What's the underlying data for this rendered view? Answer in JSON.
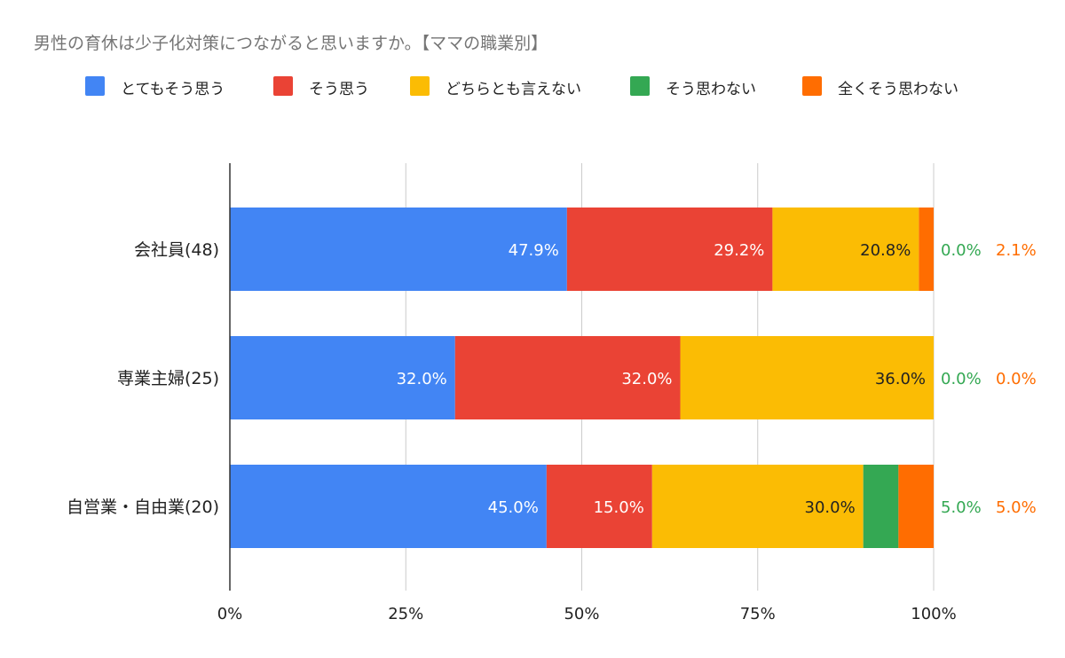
{
  "chart_data": {
    "type": "bar",
    "orientation": "horizontal",
    "stacked": "percent",
    "title": "男性の育休は少子化対策につながると思いますか。【ママの職業別】",
    "legend_position": "top",
    "categories": [
      "会社員(48)",
      "専業主婦(25)",
      "自営業・自由業(20)"
    ],
    "series": [
      {
        "name": "とてもそう思う",
        "color": "#4285F4",
        "values": [
          47.9,
          32.0,
          45.0
        ],
        "labels": [
          "47.9%",
          "32.0%",
          "45.0%"
        ]
      },
      {
        "name": "そう思う",
        "color": "#EA4335",
        "values": [
          29.2,
          32.0,
          15.0
        ],
        "labels": [
          "29.2%",
          "32.0%",
          "15.0%"
        ]
      },
      {
        "name": "どちらとも言えない",
        "color": "#FBBC04",
        "values": [
          20.8,
          36.0,
          30.0
        ],
        "labels": [
          "20.8%",
          "36.0%",
          "30.0%"
        ]
      },
      {
        "name": "そう思わない",
        "color": "#34A853",
        "values": [
          0.0,
          0.0,
          5.0
        ],
        "labels": [
          "0.0%",
          "0.0%",
          "5.0%"
        ]
      },
      {
        "name": "全くそう思わない",
        "color": "#FF6D01",
        "values": [
          2.1,
          0.0,
          5.0
        ],
        "labels": [
          "2.1%",
          "0.0%",
          "5.0%"
        ]
      }
    ],
    "xlim": [
      0,
      100
    ],
    "xticks": [
      "0%",
      "25%",
      "50%",
      "75%",
      "100%"
    ],
    "xtick_values": [
      0,
      25,
      50,
      75,
      100
    ],
    "grid": true
  }
}
